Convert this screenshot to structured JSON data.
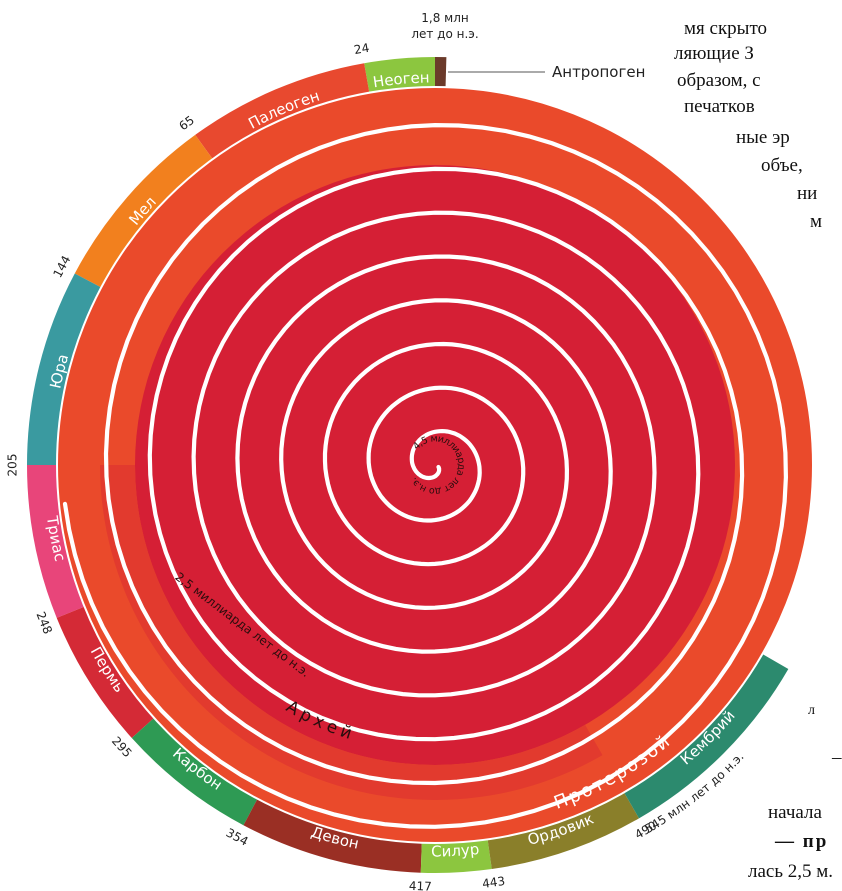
{
  "diagram": {
    "periods": [
      {
        "name": "Неоген",
        "color": "#8cc63f"
      },
      {
        "name": "Палеоген",
        "color": "#e8492f"
      },
      {
        "name": "Мел",
        "color": "#f2801e"
      },
      {
        "name": "Юра",
        "color": "#3a9aa0"
      },
      {
        "name": "Триас",
        "color": "#e8457a"
      },
      {
        "name": "Пермь",
        "color": "#d42a36"
      },
      {
        "name": "Карбон",
        "color": "#2e9a54"
      },
      {
        "name": "Девон",
        "color": "#9a2f24"
      },
      {
        "name": "Силур",
        "color": "#8cc63f"
      },
      {
        "name": "Ордовик",
        "color": "#8a7f2a"
      },
      {
        "name": "Кембрий",
        "color": "#2c8a6e"
      }
    ],
    "ages": [
      "24",
      "65",
      "144",
      "205",
      "248",
      "295",
      "354",
      "417",
      "443",
      "490"
    ],
    "top_age_line1": "1,8 млн",
    "top_age_line2": "лет до н.э.",
    "cambrian_age": "545 млн лет до н.э.",
    "anthropogen_label": "Антропоген",
    "anthropogen_color": "#6b3a2a",
    "proterozoic_label": "Протерозой",
    "proterozoic_color": "#ea4a2b",
    "archaean_label": "Архей",
    "archaean_color": "#d51f35",
    "label_2_5": "2,5 миллиарда лет до н.э.",
    "label_4_5": "4,5 миллиарда лет до н.э."
  },
  "side_text": {
    "lines": [
      "мя скрыто",
      "ляющие З",
      "образом, с",
      "печатков",
      "ные эр",
      "объе,",
      "ни",
      "м"
    ],
    "stray_1": "л",
    "stray_2": "–",
    "bottom_1": "начала",
    "bottom_2": "— пр",
    "bottom_3": "лась 2,5 м."
  }
}
